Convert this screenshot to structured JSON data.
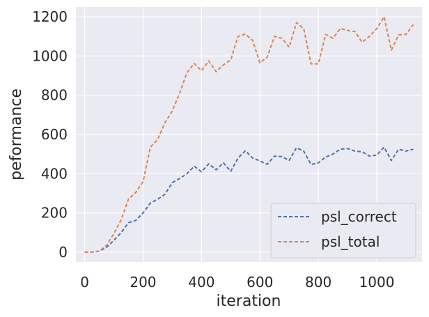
{
  "chart_data": {
    "type": "line",
    "title": "",
    "xlabel": "iteration",
    "ylabel": "peformance",
    "xlim": [
      -30,
      1155
    ],
    "ylim": [
      -50,
      1250
    ],
    "xticks": [
      0,
      200,
      400,
      600,
      800,
      1000
    ],
    "yticks": [
      0,
      200,
      400,
      600,
      800,
      1000,
      1200
    ],
    "grid": true,
    "legend_position": "bottom-right",
    "x": [
      0,
      25,
      50,
      75,
      100,
      125,
      150,
      175,
      200,
      225,
      250,
      275,
      300,
      325,
      350,
      375,
      400,
      425,
      450,
      475,
      500,
      525,
      550,
      575,
      600,
      625,
      650,
      675,
      700,
      725,
      750,
      775,
      800,
      825,
      850,
      875,
      900,
      925,
      950,
      975,
      1000,
      1025,
      1050,
      1075,
      1100,
      1125
    ],
    "series": [
      {
        "name": "psl_correct",
        "color": "#4c72b0",
        "values": [
          0,
          0,
          5,
          25,
          60,
          100,
          150,
          162,
          200,
          250,
          270,
          295,
          355,
          375,
          400,
          438,
          410,
          450,
          420,
          455,
          412,
          480,
          517,
          480,
          465,
          448,
          490,
          487,
          468,
          532,
          515,
          447,
          455,
          485,
          500,
          525,
          528,
          515,
          512,
          490,
          495,
          535,
          467,
          525,
          515,
          525
        ]
      },
      {
        "name": "psl_total",
        "color": "#dd8452",
        "values": [
          0,
          0,
          5,
          35,
          95,
          165,
          270,
          305,
          360,
          535,
          575,
          660,
          720,
          810,
          915,
          962,
          925,
          975,
          920,
          955,
          980,
          1100,
          1112,
          1080,
          965,
          995,
          1100,
          1090,
          1045,
          1170,
          1140,
          960,
          960,
          1110,
          1090,
          1140,
          1130,
          1125,
          1070,
          1100,
          1140,
          1200,
          1030,
          1108,
          1110,
          1160
        ]
      }
    ]
  }
}
